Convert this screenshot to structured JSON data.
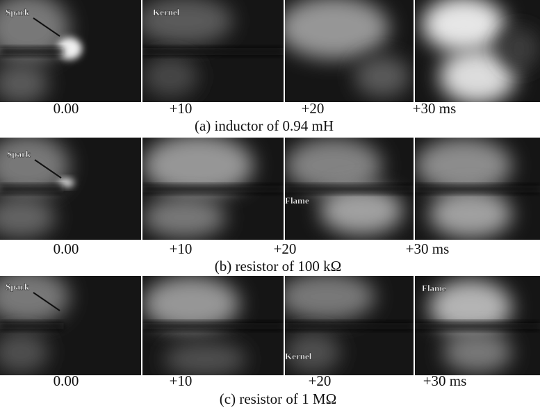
{
  "panels": [
    {
      "times": [
        "0.00",
        "+10",
        "+20",
        "+30 ms"
      ],
      "caption": "(a)  inductor of 0.94 mH",
      "frames": [
        {
          "labels": [
            "Spark"
          ]
        },
        {
          "labels": [
            "Kernel"
          ]
        },
        {
          "labels": []
        },
        {
          "labels": []
        }
      ]
    },
    {
      "times": [
        "0.00",
        "+10",
        "+20",
        "+30 ms"
      ],
      "caption": "(b) resistor of 100 kΩ",
      "frames": [
        {
          "labels": [
            "Spark"
          ]
        },
        {
          "labels": []
        },
        {
          "labels": [
            "Flame"
          ]
        },
        {
          "labels": []
        }
      ]
    },
    {
      "times": [
        "0.00",
        "+10",
        "+20",
        "+30 ms"
      ],
      "caption": "(c) resistor of 1 MΩ",
      "frames": [
        {
          "labels": [
            "Spark"
          ]
        },
        {
          "labels": []
        },
        {
          "labels": [
            "Kernel"
          ]
        },
        {
          "labels": [
            "Flame"
          ]
        }
      ]
    }
  ]
}
